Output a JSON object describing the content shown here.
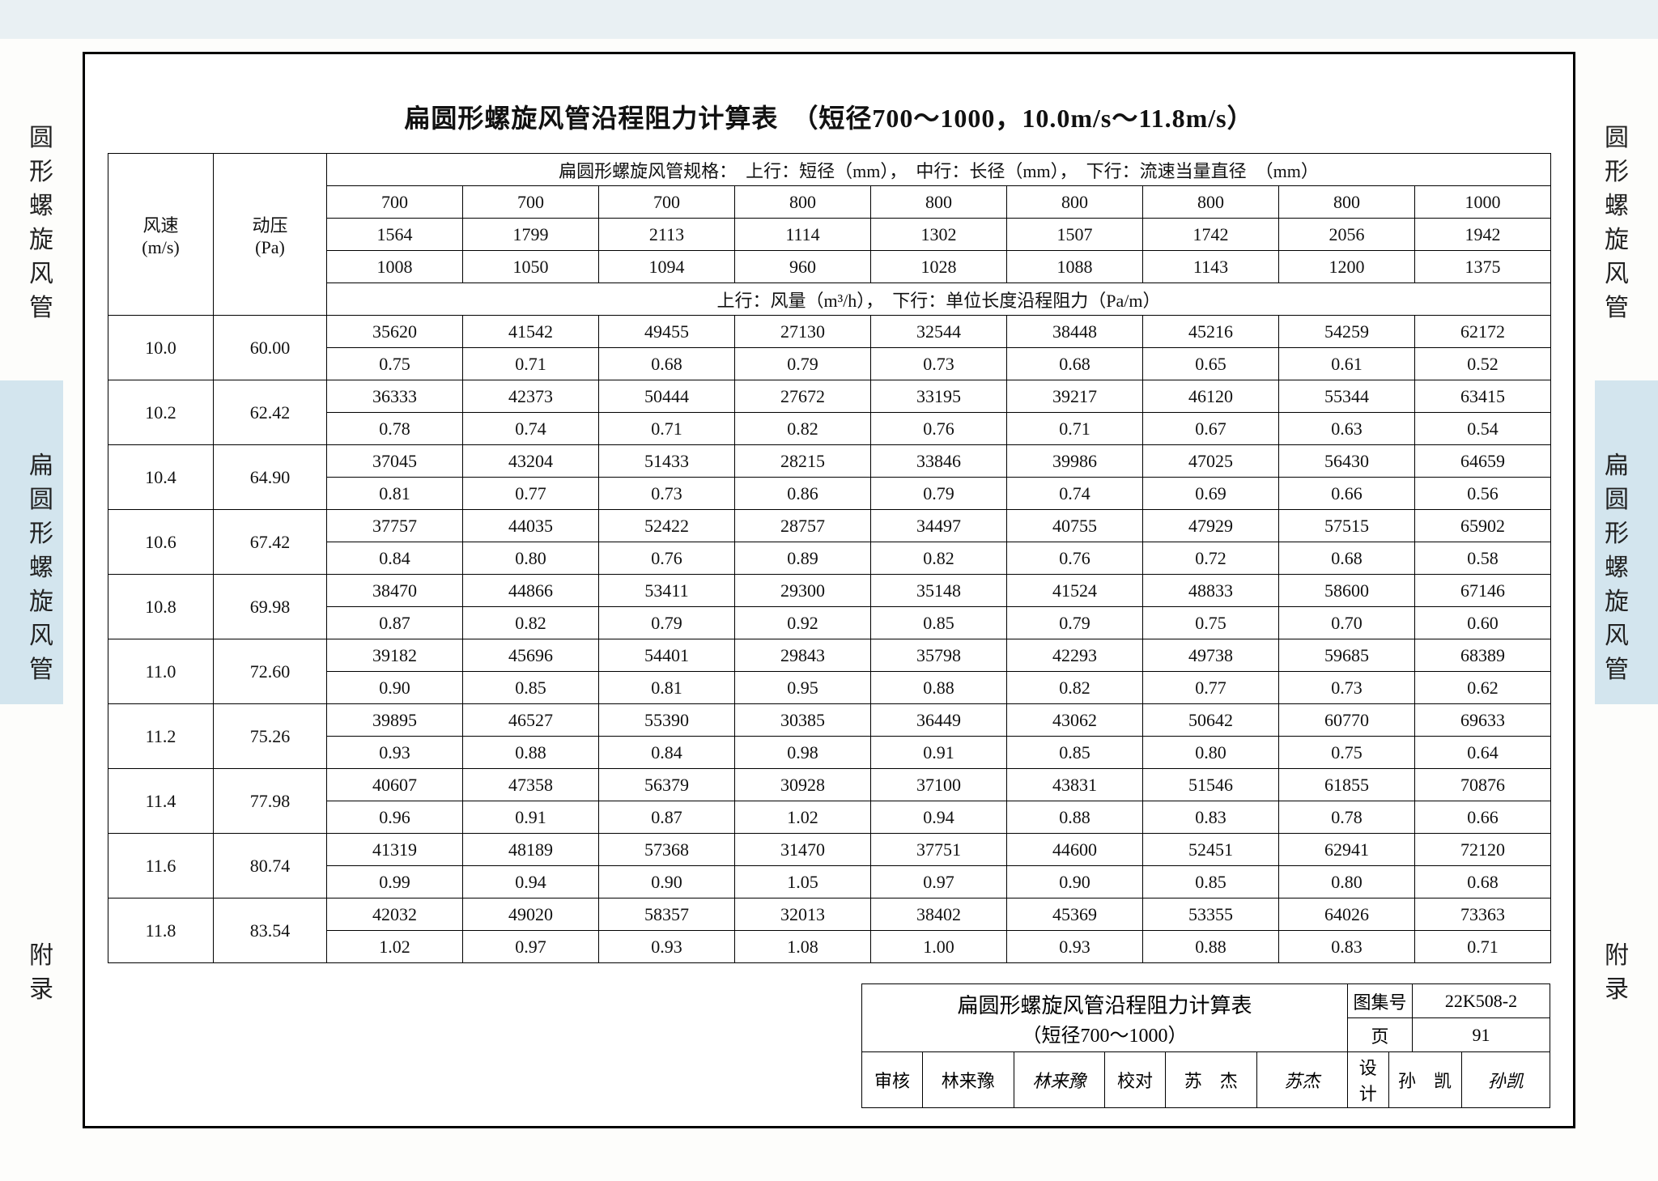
{
  "side_labels": {
    "upper": [
      "圆",
      "形",
      "螺",
      "旋",
      "风",
      "管"
    ],
    "middle": [
      "扁",
      "圆",
      "形",
      "螺",
      "旋",
      "风",
      "管"
    ],
    "lower": [
      "附",
      "录"
    ]
  },
  "title": "扁圆形螺旋风管沿程阻力计算表　（短径700～1000，10.0m/s～11.8m/s）",
  "spec_header": "扁圆形螺旋风管规格：　上行：短径（mm），　中行：长径（mm），　下行：流速当量直径　（mm）",
  "col_labels": {
    "speed": "风速\n(m/s)",
    "dynp": "动压\n(Pa)"
  },
  "spec_rows": {
    "short_dia": [
      "700",
      "700",
      "700",
      "800",
      "800",
      "800",
      "800",
      "800",
      "1000"
    ],
    "long_dia": [
      "1564",
      "1799",
      "2113",
      "1114",
      "1302",
      "1507",
      "1742",
      "2056",
      "1942"
    ],
    "eq_dia": [
      "1008",
      "1050",
      "1094",
      "960",
      "1028",
      "1088",
      "1143",
      "1200",
      "1375"
    ]
  },
  "mid_header": "上行：风量（m³/h），　下行：单位长度沿程阻力（Pa/m）",
  "rows": [
    {
      "speed": "10.0",
      "dp": "60.00",
      "q": [
        "35620",
        "41542",
        "49455",
        "27130",
        "32544",
        "38448",
        "45216",
        "54259",
        "62172"
      ],
      "r": [
        "0.75",
        "0.71",
        "0.68",
        "0.79",
        "0.73",
        "0.68",
        "0.65",
        "0.61",
        "0.52"
      ]
    },
    {
      "speed": "10.2",
      "dp": "62.42",
      "q": [
        "36333",
        "42373",
        "50444",
        "27672",
        "33195",
        "39217",
        "46120",
        "55344",
        "63415"
      ],
      "r": [
        "0.78",
        "0.74",
        "0.71",
        "0.82",
        "0.76",
        "0.71",
        "0.67",
        "0.63",
        "0.54"
      ]
    },
    {
      "speed": "10.4",
      "dp": "64.90",
      "q": [
        "37045",
        "43204",
        "51433",
        "28215",
        "33846",
        "39986",
        "47025",
        "56430",
        "64659"
      ],
      "r": [
        "0.81",
        "0.77",
        "0.73",
        "0.86",
        "0.79",
        "0.74",
        "0.69",
        "0.66",
        "0.56"
      ]
    },
    {
      "speed": "10.6",
      "dp": "67.42",
      "q": [
        "37757",
        "44035",
        "52422",
        "28757",
        "34497",
        "40755",
        "47929",
        "57515",
        "65902"
      ],
      "r": [
        "0.84",
        "0.80",
        "0.76",
        "0.89",
        "0.82",
        "0.76",
        "0.72",
        "0.68",
        "0.58"
      ]
    },
    {
      "speed": "10.8",
      "dp": "69.98",
      "q": [
        "38470",
        "44866",
        "53411",
        "29300",
        "35148",
        "41524",
        "48833",
        "58600",
        "67146"
      ],
      "r": [
        "0.87",
        "0.82",
        "0.79",
        "0.92",
        "0.85",
        "0.79",
        "0.75",
        "0.70",
        "0.60"
      ]
    },
    {
      "speed": "11.0",
      "dp": "72.60",
      "q": [
        "39182",
        "45696",
        "54401",
        "29843",
        "35798",
        "42293",
        "49738",
        "59685",
        "68389"
      ],
      "r": [
        "0.90",
        "0.85",
        "0.81",
        "0.95",
        "0.88",
        "0.82",
        "0.77",
        "0.73",
        "0.62"
      ]
    },
    {
      "speed": "11.2",
      "dp": "75.26",
      "q": [
        "39895",
        "46527",
        "55390",
        "30385",
        "36449",
        "43062",
        "50642",
        "60770",
        "69633"
      ],
      "r": [
        "0.93",
        "0.88",
        "0.84",
        "0.98",
        "0.91",
        "0.85",
        "0.80",
        "0.75",
        "0.64"
      ]
    },
    {
      "speed": "11.4",
      "dp": "77.98",
      "q": [
        "40607",
        "47358",
        "56379",
        "30928",
        "37100",
        "43831",
        "51546",
        "61855",
        "70876"
      ],
      "r": [
        "0.96",
        "0.91",
        "0.87",
        "1.02",
        "0.94",
        "0.88",
        "0.83",
        "0.78",
        "0.66"
      ]
    },
    {
      "speed": "11.6",
      "dp": "80.74",
      "q": [
        "41319",
        "48189",
        "57368",
        "31470",
        "37751",
        "44600",
        "52451",
        "62941",
        "72120"
      ],
      "r": [
        "0.99",
        "0.94",
        "0.90",
        "1.05",
        "0.97",
        "0.90",
        "0.85",
        "0.80",
        "0.68"
      ]
    },
    {
      "speed": "11.8",
      "dp": "83.54",
      "q": [
        "42032",
        "49020",
        "58357",
        "32013",
        "38402",
        "45369",
        "53355",
        "64026",
        "73363"
      ],
      "r": [
        "1.02",
        "0.97",
        "0.93",
        "1.08",
        "1.00",
        "0.93",
        "0.88",
        "0.83",
        "0.71"
      ]
    }
  ],
  "footer": {
    "title1": "扁圆形螺旋风管沿程阻力计算表",
    "title2": "（短径700～1000）",
    "tuji_lbl": "图集号",
    "tuji_val": "22K508-2",
    "review_lbl": "审核",
    "review_name": "林来豫",
    "review_sig": "林来豫",
    "check_lbl": "校对",
    "check_name": "苏　杰",
    "check_sig": "苏杰",
    "design_lbl": "设计",
    "design_name": "孙　凯",
    "design_sig": "孙凯",
    "page_lbl": "页",
    "page_val": "91"
  }
}
